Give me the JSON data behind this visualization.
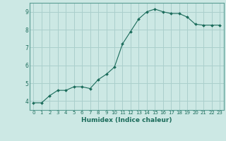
{
  "x": [
    0,
    1,
    2,
    3,
    4,
    5,
    6,
    7,
    8,
    9,
    10,
    11,
    12,
    13,
    14,
    15,
    16,
    17,
    18,
    19,
    20,
    21,
    22,
    23
  ],
  "y": [
    3.9,
    3.9,
    4.3,
    4.6,
    4.6,
    4.8,
    4.8,
    4.7,
    5.2,
    5.5,
    5.9,
    7.2,
    7.9,
    8.6,
    9.0,
    9.15,
    9.0,
    8.9,
    8.9,
    8.7,
    8.3,
    8.25,
    8.25,
    8.25
  ],
  "xlabel": "Humidex (Indice chaleur)",
  "bg_color": "#cce8e4",
  "grid_color": "#aacfcc",
  "line_color": "#1a6b5a",
  "marker_color": "#1a6b5a",
  "ylim": [
    3.5,
    9.5
  ],
  "xlim": [
    -0.5,
    23.5
  ],
  "yticks": [
    4,
    5,
    6,
    7,
    8,
    9
  ],
  "xticks": [
    0,
    1,
    2,
    3,
    4,
    5,
    6,
    7,
    8,
    9,
    10,
    11,
    12,
    13,
    14,
    15,
    16,
    17,
    18,
    19,
    20,
    21,
    22,
    23
  ],
  "tick_color": "#1a6b5a",
  "spine_color": "#5a9e94"
}
